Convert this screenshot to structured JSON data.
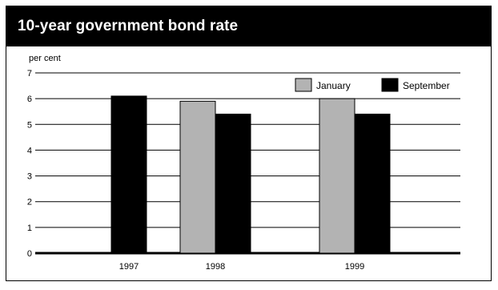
{
  "header": {
    "title": "10-year government bond rate"
  },
  "chart_data": {
    "type": "bar",
    "title": "10-year government bond rate",
    "ylabel": "per cent",
    "xlabel": "",
    "ylim": [
      0,
      7
    ],
    "yticks": [
      0,
      1,
      2,
      3,
      4,
      5,
      6,
      7
    ],
    "grid": true,
    "legend_position": "top-right",
    "categories": [
      "1997",
      "1998",
      "1999"
    ],
    "series": [
      {
        "name": "January",
        "color": "#b3b3b3",
        "values": [
          null,
          5.9,
          6.0
        ]
      },
      {
        "name": "September",
        "color": "#000000",
        "values": [
          6.1,
          5.4,
          5.4
        ]
      }
    ]
  }
}
